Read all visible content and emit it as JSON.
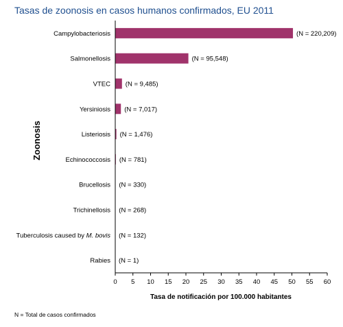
{
  "title": "Tasas de zoonosis en casos humanos confirmados, EU 2011",
  "footnote": "N = Total de casos confirmados",
  "chart_data": {
    "type": "bar",
    "orientation": "horizontal",
    "title": "Tasas de zoonosis en casos humanos confirmados, EU 2011",
    "xlabel": "Tasa de notificación por 100.000 habitantes",
    "ylabel": "Zoonosis",
    "xlim": [
      0,
      60
    ],
    "xticks": [
      0,
      5,
      10,
      15,
      20,
      25,
      30,
      35,
      40,
      45,
      50,
      55,
      60
    ],
    "grid": false,
    "bar_color": "#a0336b",
    "categories": [
      "Campylobacteriosis",
      "Salmonellosis",
      "VTEC",
      "Yersiniosis",
      "Listeriosis",
      "Echinococcosis",
      "Brucellosis",
      "Trichinellosis",
      "Tuberculosis caused by M. bovis",
      "Rabies"
    ],
    "values": [
      50.3,
      20.7,
      1.9,
      1.6,
      0.32,
      0.17,
      0.07,
      0.06,
      0.03,
      0.0
    ],
    "data_labels": [
      "(N = 220,209)",
      "(N = 95,548)",
      "(N = 9,485)",
      "(N = 7,017)",
      "(N = 1,476)",
      "(N = 781)",
      "(N = 330)",
      "(N = 268)",
      "(N = 132)",
      "(N = 1)"
    ]
  }
}
